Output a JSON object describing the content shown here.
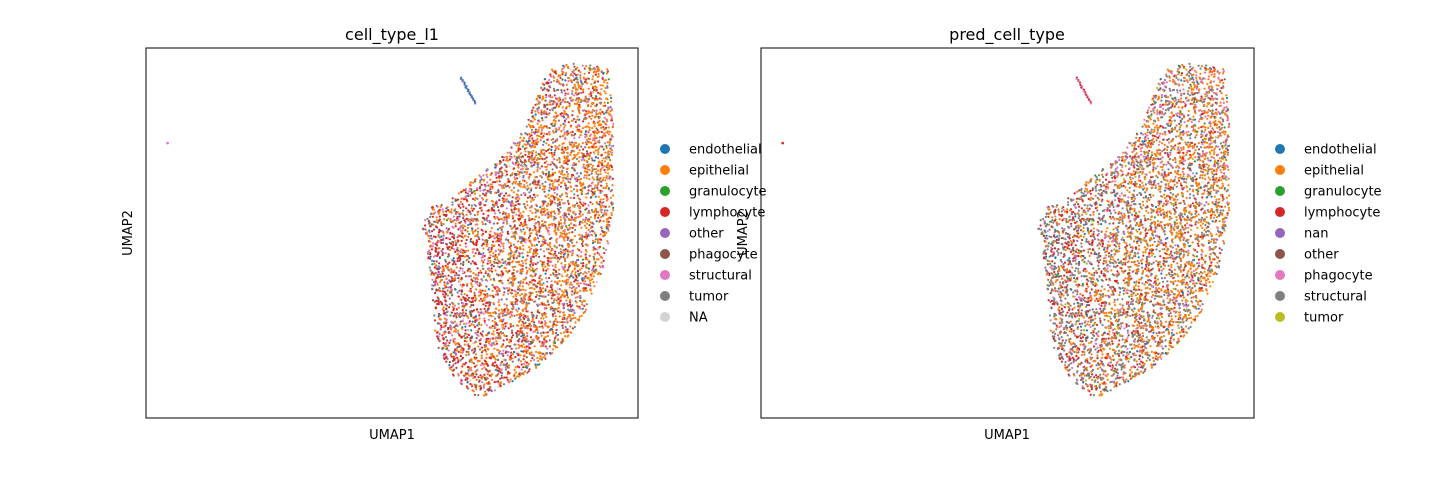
{
  "chart_data": [
    {
      "type": "scatter",
      "title": "cell_type_l1",
      "xlabel": "UMAP1",
      "ylabel": "UMAP2",
      "ticks": "none",
      "grid": false,
      "legend_position": "right-outside",
      "legend": [
        {
          "name": "endothelial",
          "color": "#1f77b4",
          "weight": 0.04
        },
        {
          "name": "epithelial",
          "color": "#ff7f0e",
          "weight": 0.34
        },
        {
          "name": "granulocyte",
          "color": "#2ca02c",
          "weight": 0.01
        },
        {
          "name": "lymphocyte",
          "color": "#d62728",
          "weight": 0.24
        },
        {
          "name": "other",
          "color": "#9467bd",
          "weight": 0.05
        },
        {
          "name": "phagocyte",
          "color": "#8c564b",
          "weight": 0.05
        },
        {
          "name": "structural",
          "color": "#e377c2",
          "weight": 0.12
        },
        {
          "name": "tumor",
          "color": "#7f7f7f",
          "weight": 0.13
        },
        {
          "name": "NA",
          "color": "#d3d3d3",
          "weight": 0.02
        }
      ]
    },
    {
      "type": "scatter",
      "title": "pred_cell_type",
      "xlabel": "UMAP1",
      "ylabel": "UMAP2",
      "ticks": "none",
      "grid": false,
      "legend_position": "right-outside",
      "legend": [
        {
          "name": "endothelial",
          "color": "#1f77b4",
          "weight": 0.03
        },
        {
          "name": "epithelial",
          "color": "#ff7f0e",
          "weight": 0.3
        },
        {
          "name": "granulocyte",
          "color": "#2ca02c",
          "weight": 0.01
        },
        {
          "name": "lymphocyte",
          "color": "#d62728",
          "weight": 0.15
        },
        {
          "name": "nan",
          "color": "#9467bd",
          "weight": 0.02
        },
        {
          "name": "other",
          "color": "#8c564b",
          "weight": 0.03
        },
        {
          "name": "phagocyte",
          "color": "#e377c2",
          "weight": 0.09
        },
        {
          "name": "structural",
          "color": "#7f7f7f",
          "weight": 0.33
        },
        {
          "name": "tumor",
          "color": "#bcbd22",
          "weight": 0.04
        }
      ]
    }
  ]
}
